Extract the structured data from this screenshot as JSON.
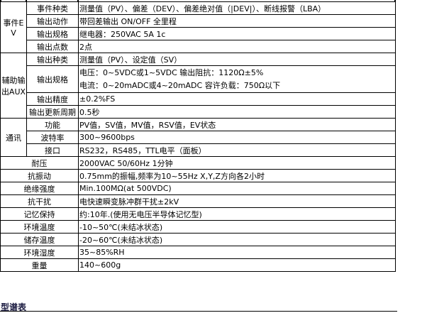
{
  "groups": {
    "ev": {
      "label": "事件EV",
      "rows": [
        {
          "k": "事件种类",
          "v": "测量值（PV）、偏差（DEV）、偏差绝对值（|DEV|）、断线报警（LBA）"
        },
        {
          "k": "输出动作",
          "v": "带回差输出 ON/OFF 全里程"
        },
        {
          "k": "输出规格",
          "v": "继电器：250VAC 5A 1c"
        },
        {
          "k": "输出点数",
          "v": "2点"
        }
      ]
    },
    "aux": {
      "label": "辅助输出AUX",
      "rows": [
        {
          "k": "输出种类",
          "v": "测量值（PV）、设定值（SV）"
        },
        {
          "k": "输出规格",
          "v": "电压：0~5VDC或1~5VDC 输出阻抗：1120Ω±5%",
          "v2": "电流：0~20mADC或4~20mADC 容许负载：750Ω以下"
        },
        {
          "k": "输出精度",
          "v": "±0.2%FS"
        },
        {
          "k": "输出更新周期",
          "v": "0.5秒"
        }
      ]
    },
    "comm": {
      "label": "通讯",
      "rows": [
        {
          "k": "功能",
          "v": "PV值，SV值，MV值，RSV值，EV状态"
        },
        {
          "k": "波特率",
          "v": "300~9600bps"
        },
        {
          "k": "接口",
          "v": "RS232，RS485，TTL电平（面板）"
        }
      ]
    }
  },
  "rows": [
    {
      "k": "耐压",
      "v": "2000VAC 50/60Hz 1分钟"
    },
    {
      "k": "抗振动",
      "v": "0.75mm的振幅,频率为10~55Hz X,Y,Z方向各2小时"
    },
    {
      "k": "绝缘强度",
      "v": "Min.100MΩ(at 500VDC)"
    },
    {
      "k": "抗干扰",
      "v": "电快速瞬变脉冲群干扰±2kV"
    },
    {
      "k": "记忆保持",
      "v": "约:10年.(使用无电压半导体记忆型)"
    },
    {
      "k": "环境温度",
      "v": "-10~50℃(未结冰状态)"
    },
    {
      "k": "储存温度",
      "v": "-20~60℃(未结冰状态)"
    },
    {
      "k": "环境湿度",
      "v": "35~85%RH"
    },
    {
      "k": "重量",
      "v": "140~600g"
    }
  ],
  "footer": {
    "heading": "型谱表"
  }
}
